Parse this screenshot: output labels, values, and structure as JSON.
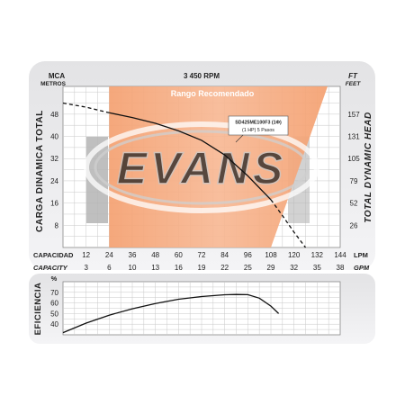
{
  "chart_data": [
    {
      "type": "line",
      "title": "3 450 RPM",
      "region_label": "Rango Recomendado",
      "watermark": "EVANS",
      "left_axis_unit": [
        "MCA",
        "METROS"
      ],
      "right_axis_unit": [
        "FT",
        "FEET"
      ],
      "ylabel": "CARGA DINAMICA TOTAL",
      "ylabel_right": "TOTAL DYNAMIC HEAD",
      "y_ticks": [
        48,
        40,
        32,
        24,
        16,
        8
      ],
      "y_ticks_right": [
        157,
        131,
        105,
        79,
        52,
        26
      ],
      "ylim": [
        0,
        58
      ],
      "xlabel": "CAPACIDAD",
      "xlabel_unit": "LPM",
      "x_ticks": [
        12,
        24,
        36,
        48,
        60,
        72,
        84,
        96,
        108,
        120,
        132,
        144
      ],
      "xlabel_secondary": "CAPACITY",
      "xlabel_secondary_unit": "GPM",
      "x_ticks_secondary": [
        3,
        6,
        10,
        13,
        16,
        19,
        22,
        25,
        29,
        32,
        35,
        38
      ],
      "xlim": [
        0,
        144
      ],
      "series": [
        {
          "name": "SD425ME100F3 (1Φ)",
          "name_line2": "(1 HP)  5 Pasos",
          "x": [
            0,
            12,
            24,
            36,
            48,
            60,
            72,
            84,
            96,
            108,
            114,
            120,
            126
          ],
          "y": [
            52,
            50.5,
            48.5,
            46.8,
            44.7,
            42,
            38.6,
            33.3,
            25.8,
            17.2,
            11.5,
            5.5,
            0
          ]
        }
      ],
      "recommended_range_x": [
        24,
        120
      ],
      "grid": true
    },
    {
      "type": "line",
      "ylabel": "EFICIENCIA",
      "y_unit": "%",
      "y_ticks": [
        70,
        60,
        50,
        40
      ],
      "ylim": [
        30,
        80
      ],
      "xlim": [
        0,
        144
      ],
      "series": [
        {
          "x": [
            0,
            12,
            24,
            36,
            48,
            60,
            72,
            84,
            90,
            96,
            102,
            108,
            112
          ],
          "y": [
            32,
            41,
            48.5,
            54.5,
            59.5,
            63.5,
            66,
            67.7,
            68,
            67.8,
            64.5,
            57,
            50
          ]
        }
      ],
      "grid": true
    }
  ]
}
